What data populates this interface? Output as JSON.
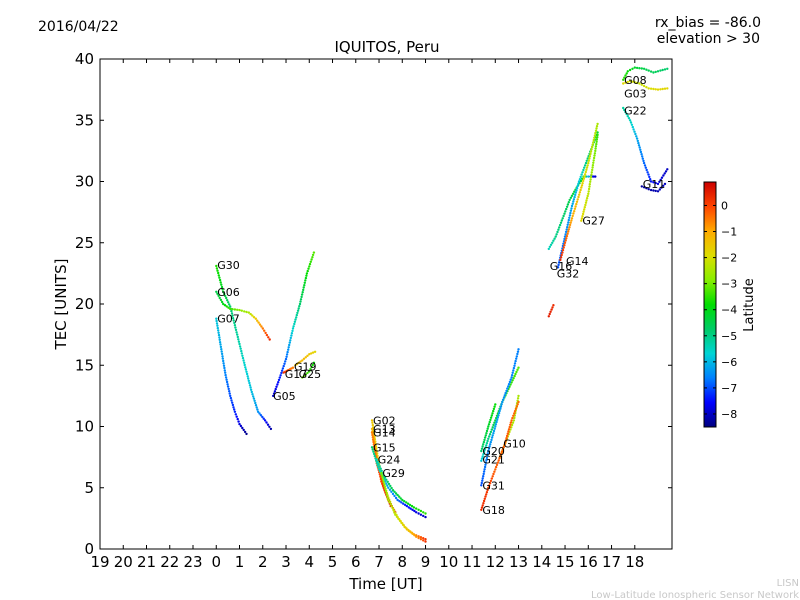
{
  "header": {
    "date": "2016/04/22",
    "rx_bias": "rx_bias = -86.0",
    "elevation": "elevation > 30"
  },
  "footer": {
    "org": "LISN",
    "org_full": "Low-Latitude Ionospheric Sensor Network"
  },
  "colorbar": {
    "label": "Latitude",
    "ticks": [
      0,
      -1,
      -2,
      -3,
      -4,
      -5,
      -6,
      -7,
      -8
    ],
    "range": [
      -8.5,
      0.9
    ],
    "colors": [
      "#00007f",
      "#0000ff",
      "#0080ff",
      "#00d4d4",
      "#00cc66",
      "#00dd00",
      "#88ee00",
      "#dddd00",
      "#ffaa00",
      "#ff4400",
      "#cc0000"
    ]
  },
  "chart_data": {
    "type": "scatter",
    "title": "IQUITOS, Peru",
    "xlabel": "Time [UT]",
    "ylabel": "TEC [UNITS]",
    "xlim": [
      -5,
      19.6
    ],
    "ylim": [
      0,
      40
    ],
    "xtick_labels": [
      "19",
      "20",
      "21",
      "22",
      "23",
      "0",
      "1",
      "2",
      "3",
      "4",
      "5",
      "6",
      "7",
      "8",
      "9",
      "10",
      "11",
      "12",
      "13",
      "14",
      "15",
      "16",
      "17",
      "18"
    ],
    "yticks": [
      0,
      5,
      10,
      15,
      20,
      25,
      30,
      35,
      40
    ],
    "grid": false,
    "series": [
      {
        "name": "G30",
        "label_at": [
          0.0,
          23.2
        ],
        "points": [
          [
            0.0,
            23.1,
            -3.6
          ],
          [
            0.3,
            21.0,
            -4.2
          ],
          [
            0.6,
            19.8,
            -4.8
          ],
          [
            0.9,
            17.5,
            -5.2
          ],
          [
            1.2,
            15.2,
            -5.6
          ],
          [
            1.5,
            13.0,
            -5.9
          ],
          [
            1.8,
            11.2,
            -6.4
          ],
          [
            2.1,
            10.5,
            -7.5
          ],
          [
            2.35,
            9.8,
            -8.2
          ]
        ]
      },
      {
        "name": "G06",
        "label_at": [
          0.0,
          21.0
        ],
        "points": [
          [
            0.0,
            21.0,
            -4.5
          ],
          [
            0.3,
            20.0,
            -4.0
          ],
          [
            0.6,
            19.6,
            -3.4
          ],
          [
            1.0,
            19.5,
            -2.8
          ],
          [
            1.4,
            19.3,
            -2.5
          ],
          [
            1.7,
            18.8,
            -1.5
          ],
          [
            2.0,
            18.0,
            -0.5
          ],
          [
            2.3,
            17.1,
            0.3
          ]
        ]
      },
      {
        "name": "G07",
        "label_at": [
          0.0,
          18.8
        ],
        "points": [
          [
            0.0,
            18.8,
            -5.8
          ],
          [
            0.2,
            16.5,
            -6.2
          ],
          [
            0.4,
            14.2,
            -6.6
          ],
          [
            0.6,
            12.5,
            -7.0
          ],
          [
            0.8,
            11.2,
            -7.3
          ],
          [
            1.0,
            10.2,
            -7.8
          ],
          [
            1.3,
            9.4,
            -8.4
          ]
        ]
      },
      {
        "name": "G05",
        "label_at": [
          2.4,
          12.5
        ],
        "points": [
          [
            2.45,
            12.5,
            -8.0
          ],
          [
            2.7,
            13.8,
            -7.4
          ],
          [
            3.0,
            15.5,
            -6.8
          ],
          [
            3.3,
            18.0,
            -5.6
          ],
          [
            3.6,
            20.0,
            -4.8
          ],
          [
            3.9,
            22.5,
            -3.8
          ],
          [
            4.2,
            24.2,
            -3.2
          ]
        ]
      },
      {
        "name": "G19",
        "label_at": [
          3.3,
          14.9
        ],
        "points": [
          [
            3.4,
            15.0,
            -1.5
          ],
          [
            3.7,
            15.4,
            -1.2
          ],
          [
            4.0,
            15.9,
            -1.5
          ],
          [
            4.25,
            16.1,
            -1.8
          ]
        ]
      },
      {
        "name": "G17",
        "label_at": [
          2.9,
          14.3
        ],
        "points": [
          [
            2.9,
            14.4,
            0.2
          ],
          [
            3.1,
            14.6,
            -0.2
          ],
          [
            3.3,
            14.8,
            -0.6
          ]
        ]
      },
      {
        "name": "G25",
        "label_at": [
          3.5,
          14.3
        ],
        "points": [
          [
            3.7,
            14.0,
            -3.0
          ],
          [
            4.0,
            14.5,
            -3.5
          ],
          [
            4.2,
            15.2,
            -3.8
          ]
        ]
      },
      {
        "name": "G02",
        "label_at": [
          6.7,
          10.5
        ],
        "points": [
          [
            6.7,
            10.5,
            -1.5
          ],
          [
            6.9,
            8.0,
            -1.8
          ],
          [
            7.1,
            6.0,
            -2.0
          ],
          [
            7.4,
            4.2,
            -2.2
          ],
          [
            7.7,
            2.8,
            -2.5
          ],
          [
            8.1,
            1.8,
            -2.0
          ],
          [
            8.5,
            1.2,
            -0.8
          ],
          [
            9.0,
            0.8,
            0.2
          ]
        ]
      },
      {
        "name": "G13",
        "label_at": [
          6.7,
          9.8
        ],
        "points": [
          [
            6.7,
            9.8,
            -1.2
          ],
          [
            6.9,
            7.5,
            -0.8
          ],
          [
            7.1,
            5.5,
            -0.4
          ],
          [
            7.4,
            4.0,
            0.0
          ],
          [
            7.7,
            3.0,
            0.4
          ]
        ]
      },
      {
        "name": "G14",
        "label_at": [
          6.7,
          9.5
        ],
        "points": [
          [
            6.7,
            9.5,
            -0.6
          ],
          [
            6.9,
            7.0,
            -0.2
          ],
          [
            7.2,
            5.0,
            0.2
          ],
          [
            7.5,
            3.5,
            0.5
          ]
        ]
      },
      {
        "name": "G15",
        "label_at": [
          6.7,
          8.3
        ],
        "points": [
          [
            6.7,
            8.3,
            -4.8
          ],
          [
            7.0,
            6.5,
            -5.5
          ],
          [
            7.4,
            5.0,
            -6.2
          ],
          [
            7.8,
            4.0,
            -6.8
          ],
          [
            8.2,
            3.5,
            -7.4
          ],
          [
            8.6,
            3.0,
            -7.8
          ],
          [
            9.0,
            2.6,
            -8.0
          ]
        ]
      },
      {
        "name": "G24",
        "label_at": [
          6.9,
          7.3
        ],
        "points": [
          [
            6.9,
            7.3,
            -5.5
          ],
          [
            7.2,
            6.0,
            -5.0
          ],
          [
            7.6,
            4.8,
            -4.5
          ],
          [
            8.0,
            4.0,
            -4.2
          ],
          [
            8.5,
            3.4,
            -3.8
          ],
          [
            9.0,
            2.9,
            -3.5
          ]
        ]
      },
      {
        "name": "G29",
        "label_at": [
          7.1,
          6.2
        ],
        "points": [
          [
            7.1,
            6.2,
            -3.0
          ],
          [
            7.4,
            4.0,
            -2.5
          ],
          [
            7.8,
            2.6,
            -2.0
          ],
          [
            8.2,
            1.6,
            -1.5
          ],
          [
            8.6,
            1.0,
            -0.8
          ],
          [
            9.0,
            0.6,
            0.2
          ]
        ]
      },
      {
        "name": "G20",
        "label_at": [
          11.4,
          8.0
        ],
        "points": [
          [
            11.4,
            7.2,
            -5.8
          ],
          [
            11.7,
            9.0,
            -5.0
          ],
          [
            12.0,
            10.5,
            -4.4
          ],
          [
            12.3,
            12.0,
            -3.8
          ],
          [
            12.7,
            13.6,
            -3.5
          ],
          [
            13.0,
            14.8,
            -3.2
          ]
        ]
      },
      {
        "name": "G21",
        "label_at": [
          11.4,
          7.3
        ],
        "points": [
          [
            11.4,
            8.0,
            -4.8
          ],
          [
            11.7,
            10.0,
            -4.2
          ],
          [
            12.0,
            11.8,
            -3.8
          ]
        ]
      },
      {
        "name": "G31",
        "label_at": [
          11.4,
          5.2
        ],
        "points": [
          [
            11.4,
            5.2,
            -7.0
          ],
          [
            11.7,
            8.0,
            -6.5
          ],
          [
            12.0,
            10.0,
            -6.2
          ],
          [
            12.3,
            12.0,
            -6.4
          ],
          [
            12.7,
            14.0,
            -6.6
          ],
          [
            13.0,
            16.3,
            -6.6
          ]
        ]
      },
      {
        "name": "G10",
        "label_at": [
          12.3,
          8.6
        ],
        "points": [
          [
            12.2,
            7.5,
            -1.5
          ],
          [
            12.5,
            9.0,
            -2.2
          ],
          [
            12.8,
            10.5,
            -2.5
          ],
          [
            13.0,
            12.5,
            -2.5
          ]
        ]
      },
      {
        "name": "G18",
        "label_at": [
          11.4,
          3.2
        ],
        "points": [
          [
            11.4,
            3.2,
            0.3
          ],
          [
            11.7,
            5.0,
            0.1
          ],
          [
            12.0,
            6.5,
            -0.3
          ],
          [
            12.4,
            8.5,
            -0.2
          ],
          [
            12.7,
            10.5,
            -0.3
          ],
          [
            13.0,
            12.0,
            -0.4
          ]
        ]
      },
      {
        "name": "G16",
        "label_at": [
          14.3,
          23.1
        ],
        "points": [
          [
            14.3,
            24.5,
            -5.5
          ],
          [
            14.6,
            25.5,
            -5.0
          ],
          [
            14.9,
            27.0,
            -4.8
          ],
          [
            15.2,
            28.5,
            -4.5
          ],
          [
            15.5,
            29.5,
            -4.2
          ],
          [
            15.8,
            30.4,
            -4.0
          ],
          [
            16.1,
            30.4,
            -7.0
          ],
          [
            16.3,
            30.4,
            -8.0
          ]
        ]
      },
      {
        "name": "G32",
        "label_at": [
          14.6,
          22.5
        ],
        "points": [
          [
            14.7,
            23.0,
            -7.0
          ],
          [
            15.0,
            25.5,
            -6.6
          ],
          [
            15.3,
            28.0,
            -6.2
          ],
          [
            15.6,
            30.0,
            -5.8
          ],
          [
            15.9,
            31.5,
            -5.0
          ],
          [
            16.2,
            33.0,
            -4.5
          ],
          [
            16.4,
            34.0,
            -4.2
          ]
        ]
      },
      {
        "name": "G14",
        "label_at": [
          15.0,
          23.5
        ],
        "points": [
          [
            14.8,
            23.6,
            0.3
          ],
          [
            15.0,
            25.0,
            -0.2
          ],
          [
            15.3,
            27.0,
            -1.0
          ],
          [
            15.7,
            29.5,
            -1.6
          ],
          [
            16.0,
            31.5,
            -2.2
          ],
          [
            16.4,
            34.7,
            -2.5
          ]
        ]
      },
      {
        "name": "G27",
        "label_at": [
          15.7,
          26.8
        ],
        "points": [
          [
            15.7,
            26.8,
            -1.8
          ],
          [
            16.0,
            29.0,
            -2.3
          ],
          [
            16.3,
            32.5,
            -3.0
          ],
          [
            16.4,
            33.8,
            -3.5
          ]
        ]
      },
      {
        "name": "",
        "label_at": [
          14.3,
          19.2
        ],
        "points": [
          [
            14.3,
            19.0,
            0.5
          ],
          [
            14.5,
            19.9,
            0.3
          ]
        ]
      },
      {
        "name": "G08",
        "label_at": [
          17.5,
          38.3
        ],
        "points": [
          [
            17.5,
            38.3,
            -3.5
          ],
          [
            17.7,
            39.0,
            -3.8
          ],
          [
            18.0,
            39.3,
            -4.2
          ],
          [
            18.4,
            39.2,
            -4.5
          ],
          [
            18.8,
            38.9,
            -4.6
          ],
          [
            19.4,
            39.2,
            -4.8
          ]
        ]
      },
      {
        "name": "G03",
        "label_at": [
          17.5,
          37.2
        ],
        "points": [
          [
            17.5,
            38.0,
            -1.8
          ],
          [
            17.8,
            38.2,
            -2.0
          ],
          [
            18.2,
            38.0,
            -2.2
          ],
          [
            18.6,
            37.6,
            -2.0
          ],
          [
            19.0,
            37.5,
            -1.8
          ],
          [
            19.4,
            37.6,
            -1.8
          ]
        ]
      },
      {
        "name": "G22",
        "label_at": [
          17.5,
          35.8
        ],
        "points": [
          [
            17.5,
            36.0,
            -5.2
          ],
          [
            17.8,
            35.0,
            -5.5
          ],
          [
            18.1,
            33.5,
            -6.2
          ],
          [
            18.4,
            31.5,
            -6.8
          ],
          [
            18.7,
            30.0,
            -7.4
          ],
          [
            19.0,
            29.8,
            -7.8
          ],
          [
            19.4,
            31.0,
            -8.0
          ]
        ]
      },
      {
        "name": "G11",
        "label_at": [
          18.3,
          29.8
        ],
        "points": [
          [
            18.3,
            29.6,
            -8.3
          ],
          [
            18.7,
            29.3,
            -8.2
          ],
          [
            19.0,
            29.2,
            -8.1
          ],
          [
            19.3,
            29.8,
            -8.0
          ]
        ]
      }
    ]
  }
}
